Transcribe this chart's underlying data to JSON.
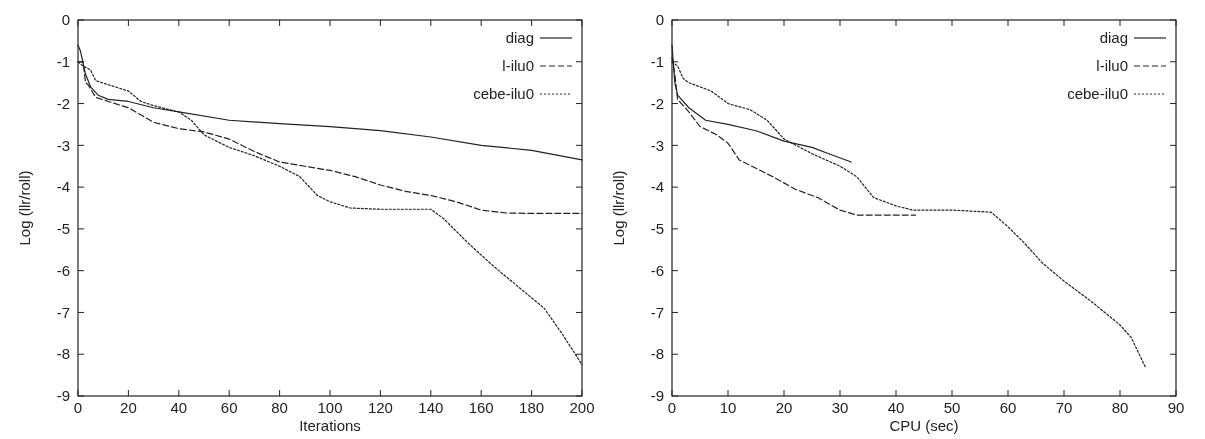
{
  "chart_data": [
    {
      "type": "line",
      "xlabel": "Iterations",
      "ylabel": "Log (llr/roll)",
      "xlim": [
        0,
        200
      ],
      "xticks": [
        0,
        20,
        40,
        60,
        80,
        100,
        120,
        140,
        160,
        180,
        200
      ],
      "ylim": [
        -9,
        0
      ],
      "yticks": [
        -9,
        -8,
        -7,
        -6,
        -5,
        -4,
        -3,
        -2,
        -1,
        0
      ],
      "legend": "top right",
      "grid": false,
      "marker": "none",
      "series": [
        {
          "name": "diag",
          "color": "#222222",
          "line_style": "solid",
          "x": [
            0,
            1,
            3,
            5,
            8,
            12,
            20,
            30,
            40,
            60,
            80,
            100,
            120,
            140,
            160,
            180,
            200
          ],
          "values": [
            -0.6,
            -0.75,
            -1.3,
            -1.6,
            -1.8,
            -1.9,
            -1.95,
            -2.1,
            -2.2,
            -2.4,
            -2.48,
            -2.55,
            -2.65,
            -2.8,
            -3.0,
            -3.12,
            -3.35
          ]
        },
        {
          "name": "l-ilu0",
          "color": "#222222",
          "line_style": "dashed",
          "x": [
            0,
            2,
            3,
            4,
            7,
            12,
            20,
            30,
            40,
            50,
            60,
            70,
            80,
            90,
            100,
            110,
            120,
            130,
            140,
            150,
            160,
            170,
            180,
            200
          ],
          "values": [
            -1.0,
            -1.0,
            -1.5,
            -1.55,
            -1.85,
            -1.95,
            -2.1,
            -2.45,
            -2.6,
            -2.68,
            -2.85,
            -3.15,
            -3.4,
            -3.5,
            -3.6,
            -3.75,
            -3.95,
            -4.1,
            -4.2,
            -4.35,
            -4.55,
            -4.62,
            -4.63,
            -4.63
          ]
        },
        {
          "name": "cebe-ilu0",
          "color": "#222222",
          "line_style": "dotted",
          "x": [
            0,
            2,
            5,
            7,
            12,
            20,
            25,
            30,
            40,
            45,
            50,
            60,
            70,
            80,
            88,
            95,
            100,
            108,
            120,
            140,
            145,
            155,
            165,
            175,
            185,
            192,
            200
          ],
          "values": [
            -1.0,
            -1.1,
            -1.2,
            -1.45,
            -1.55,
            -1.7,
            -1.95,
            -2.05,
            -2.2,
            -2.4,
            -2.75,
            -3.05,
            -3.25,
            -3.5,
            -3.75,
            -4.2,
            -4.35,
            -4.5,
            -4.53,
            -4.53,
            -4.75,
            -5.35,
            -5.9,
            -6.4,
            -6.9,
            -7.5,
            -8.25
          ]
        }
      ]
    },
    {
      "type": "line",
      "xlabel": "CPU (sec)",
      "ylabel": "Log (llr/roll)",
      "xlim": [
        0,
        90
      ],
      "xticks": [
        0,
        10,
        20,
        30,
        40,
        50,
        60,
        70,
        80,
        90
      ],
      "ylim": [
        -9,
        0
      ],
      "yticks": [
        -9,
        -8,
        -7,
        -6,
        -5,
        -4,
        -3,
        -2,
        -1,
        0
      ],
      "legend": "top right",
      "grid": false,
      "marker": "none",
      "series": [
        {
          "name": "diag",
          "color": "#222222",
          "line_style": "solid",
          "x": [
            0,
            0.5,
            1,
            3,
            6,
            10,
            15,
            20,
            25,
            28,
            32
          ],
          "values": [
            -0.6,
            -1.5,
            -1.8,
            -2.1,
            -2.4,
            -2.5,
            -2.65,
            -2.9,
            -3.05,
            -3.2,
            -3.4
          ]
        },
        {
          "name": "l-ilu0",
          "color": "#222222",
          "line_style": "dashed",
          "x": [
            0,
            0.5,
            1,
            3,
            5,
            8,
            10,
            12,
            15,
            18,
            22,
            26,
            30,
            33,
            36,
            43.5
          ],
          "values": [
            -0.9,
            -1.3,
            -1.9,
            -2.2,
            -2.55,
            -2.75,
            -2.95,
            -3.35,
            -3.55,
            -3.75,
            -4.05,
            -4.25,
            -4.55,
            -4.67,
            -4.67,
            -4.67
          ]
        },
        {
          "name": "cebe-ilu0",
          "color": "#222222",
          "line_style": "dotted",
          "x": [
            0,
            1,
            2,
            3,
            7,
            10,
            14,
            17,
            20,
            25,
            30,
            33,
            36,
            40,
            43,
            50,
            57,
            60,
            63,
            66,
            70,
            75,
            80,
            82,
            84.5
          ],
          "values": [
            -1.0,
            -1.1,
            -1.4,
            -1.5,
            -1.7,
            -2.0,
            -2.15,
            -2.4,
            -2.85,
            -3.2,
            -3.5,
            -3.75,
            -4.25,
            -4.45,
            -4.55,
            -4.55,
            -4.6,
            -4.95,
            -5.35,
            -5.8,
            -6.25,
            -6.75,
            -7.3,
            -7.6,
            -8.3
          ]
        }
      ]
    }
  ]
}
